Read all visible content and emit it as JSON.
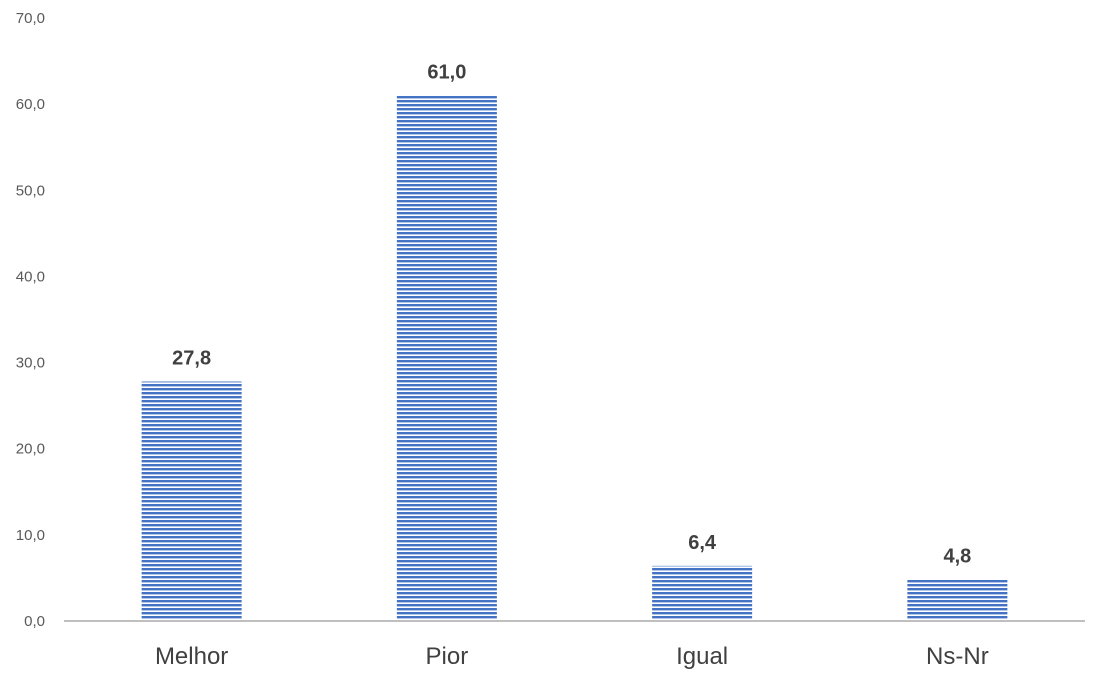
{
  "chart_data": {
    "type": "bar",
    "title": "",
    "xlabel": "",
    "ylabel": "",
    "categories": [
      "Melhor",
      "Pior",
      "Igual",
      "Ns-Nr"
    ],
    "values": [
      27.8,
      61.0,
      6.4,
      4.8
    ],
    "data_labels": [
      "27,8",
      "61,0",
      "6,4",
      "4,8"
    ],
    "ylim": [
      0,
      70
    ],
    "yticks": [
      0,
      10,
      20,
      30,
      40,
      50,
      60,
      70
    ],
    "ytick_labels": [
      "0,0",
      "10,0",
      "20,0",
      "30,0",
      "40,0",
      "50,0",
      "60,0",
      "70,0"
    ],
    "grid": false,
    "legend": "none",
    "bar_color": "#4472c4",
    "bar_pattern": "horizontal-stripes",
    "axis_color": "#bfbfbf"
  }
}
